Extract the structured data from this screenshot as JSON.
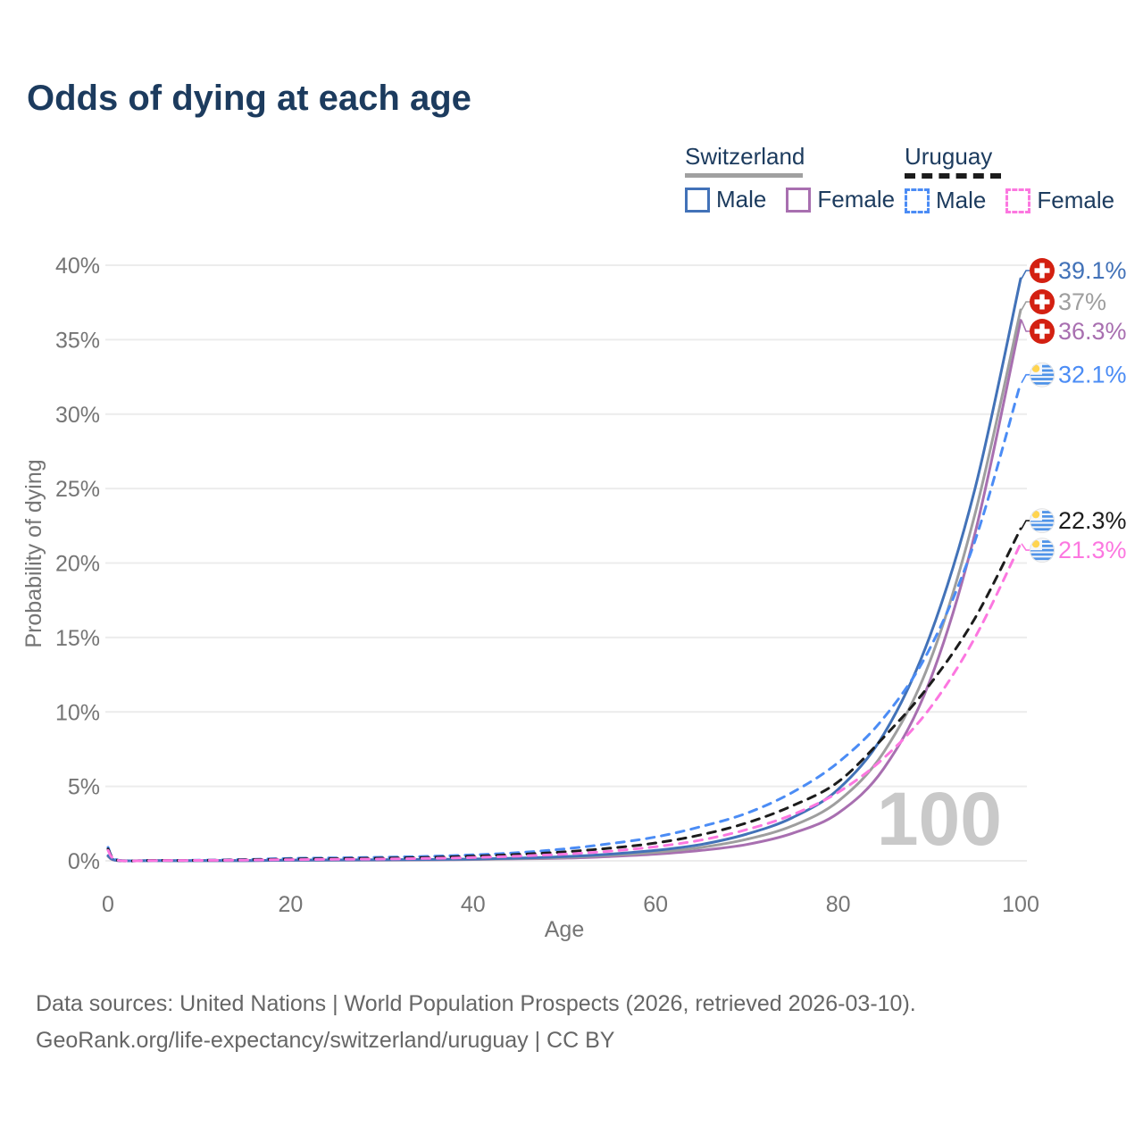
{
  "title": "Odds of dying at each age",
  "legend": {
    "groups": [
      {
        "country": "Switzerland",
        "underline_style": "solid",
        "underline_color": "#a0a0a0",
        "items": [
          {
            "label": "Male",
            "color": "#4272b8",
            "dash": false
          },
          {
            "label": "Female",
            "color": "#a86fb0",
            "dash": false
          }
        ]
      },
      {
        "country": "Uruguay",
        "underline_style": "dashed",
        "underline_color": "#1c1c1c",
        "items": [
          {
            "label": "Male",
            "color": "#4b8cf5",
            "dash": true
          },
          {
            "label": "Female",
            "color": "#fc77e0",
            "dash": true
          }
        ]
      }
    ]
  },
  "chart_data": {
    "type": "line",
    "title": "Odds of dying at each age",
    "xlabel": "Age",
    "ylabel": "Probability of dying",
    "x_ticks": [
      0,
      20,
      40,
      60,
      80,
      100
    ],
    "y_ticks": [
      "0%",
      "5%",
      "10%",
      "15%",
      "20%",
      "25%",
      "30%",
      "35%",
      "40%"
    ],
    "xlim": [
      0,
      100
    ],
    "ylim_percent": [
      0,
      40
    ],
    "grid": "horizontal-only",
    "legend_position": "top-right",
    "watermark": "100",
    "ages": [
      0,
      1,
      5,
      10,
      15,
      20,
      25,
      30,
      35,
      40,
      45,
      50,
      55,
      60,
      65,
      70,
      75,
      80,
      85,
      90,
      95,
      100
    ],
    "series": [
      {
        "name": "Switzerland Female",
        "country": "Switzerland",
        "sex": "Female",
        "style": "solid",
        "color": "#a86fb0",
        "flag": "switzerland",
        "end_label": "36.3%",
        "end_value": 36.3,
        "values_percent": [
          0.3,
          0.02,
          0.01,
          0.01,
          0.02,
          0.03,
          0.04,
          0.05,
          0.06,
          0.09,
          0.13,
          0.18,
          0.29,
          0.45,
          0.7,
          1.1,
          1.85,
          3.2,
          6.2,
          12.0,
          22.0,
          36.3
        ]
      },
      {
        "name": "Switzerland Both sexes",
        "country": "Switzerland",
        "sex": "Both",
        "style": "solid",
        "color": "#9e9e9e",
        "flag": "switzerland",
        "end_label": "37%",
        "end_value": 37.0,
        "values_percent": [
          0.32,
          0.03,
          0.01,
          0.01,
          0.02,
          0.04,
          0.05,
          0.06,
          0.08,
          0.1,
          0.15,
          0.23,
          0.37,
          0.57,
          0.9,
          1.45,
          2.35,
          4.0,
          7.3,
          13.3,
          23.3,
          37.0
        ]
      },
      {
        "name": "Switzerland Male",
        "country": "Switzerland",
        "sex": "Male",
        "style": "solid",
        "color": "#4272b8",
        "flag": "switzerland",
        "end_label": "39.1%",
        "end_value": 39.1,
        "values_percent": [
          0.35,
          0.03,
          0.01,
          0.01,
          0.02,
          0.05,
          0.06,
          0.07,
          0.09,
          0.12,
          0.18,
          0.28,
          0.45,
          0.7,
          1.1,
          1.8,
          2.9,
          4.8,
          8.5,
          15.0,
          25.0,
          39.1
        ]
      },
      {
        "name": "Uruguay Male",
        "country": "Uruguay",
        "sex": "Male",
        "style": "dashed",
        "color": "#4b8cf5",
        "flag": "uruguay",
        "end_label": "32.1%",
        "end_value": 32.1,
        "values_percent": [
          0.9,
          0.06,
          0.03,
          0.04,
          0.09,
          0.16,
          0.2,
          0.24,
          0.3,
          0.4,
          0.55,
          0.8,
          1.15,
          1.6,
          2.3,
          3.2,
          4.6,
          6.6,
          9.6,
          14.2,
          21.5,
          32.1
        ]
      },
      {
        "name": "Uruguay Both sexes",
        "country": "Uruguay",
        "sex": "Both",
        "style": "dashed",
        "color": "#1c1c1c",
        "flag": "uruguay",
        "end_label": "22.3%",
        "end_value": 22.3,
        "values_percent": [
          0.8,
          0.05,
          0.03,
          0.03,
          0.07,
          0.12,
          0.15,
          0.18,
          0.23,
          0.31,
          0.43,
          0.6,
          0.85,
          1.2,
          1.75,
          2.55,
          3.7,
          5.3,
          8.3,
          11.8,
          16.3,
          22.3
        ]
      },
      {
        "name": "Uruguay Female",
        "country": "Uruguay",
        "sex": "Female",
        "style": "dashed",
        "color": "#fc77e0",
        "flag": "uruguay",
        "end_label": "21.3%",
        "end_value": 21.3,
        "values_percent": [
          0.7,
          0.05,
          0.02,
          0.03,
          0.05,
          0.08,
          0.1,
          0.12,
          0.16,
          0.22,
          0.32,
          0.45,
          0.65,
          0.95,
          1.4,
          2.1,
          3.1,
          4.6,
          6.9,
          10.2,
          15.0,
          21.3
        ]
      }
    ]
  },
  "footer": {
    "line1": "Data sources: United Nations | World Population Prospects (2026, retrieved 2026-03-10).",
    "line2": "GeoRank.org/life-expectancy/switzerland/uruguay | CC BY"
  }
}
